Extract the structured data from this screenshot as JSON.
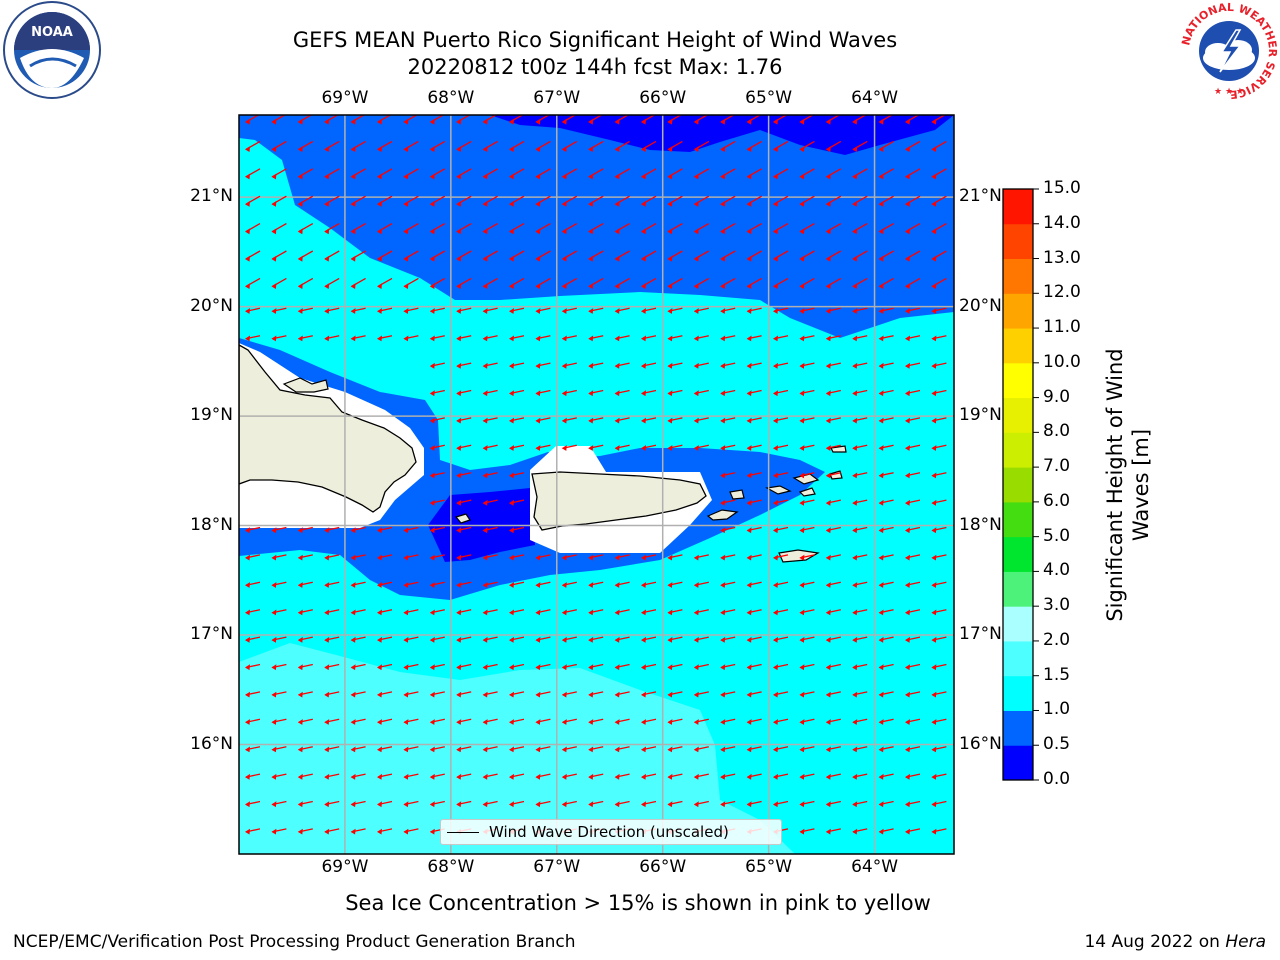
{
  "title": {
    "line1": "GEFS MEAN Puerto Rico Significant Height of Wind Waves",
    "line2": "20220812 t00z 144h fcst   Max: 1.76"
  },
  "logos": {
    "noaa_text": "NOAA",
    "nws_ring_text": "NATIONAL WEATHER SERVICE"
  },
  "axes": {
    "lon_labels": [
      "69°W",
      "68°W",
      "67°W",
      "66°W",
      "65°W",
      "64°W"
    ],
    "lon_values": [
      -69,
      -68,
      -67,
      -66,
      -65,
      -64
    ],
    "lat_labels": [
      "21°N",
      "20°N",
      "19°N",
      "18°N",
      "17°N",
      "16°N"
    ],
    "lat_values": [
      21,
      20,
      19,
      18,
      17,
      16
    ],
    "lon_range": [
      -70.0,
      -63.25
    ],
    "lat_range": [
      15.0,
      21.75
    ]
  },
  "colorbar": {
    "label": "Significant Height of Wind Waves [m]",
    "ticks": [
      "0.0",
      "0.5",
      "1.0",
      "1.5",
      "2.0",
      "3.0",
      "4.0",
      "5.0",
      "6.0",
      "7.0",
      "8.0",
      "9.0",
      "10.0",
      "11.0",
      "12.0",
      "13.0",
      "14.0",
      "15.0"
    ],
    "colors": [
      "#0000ff",
      "#0066ff",
      "#00ffff",
      "#4dffff",
      "#aaffff",
      "#4df27a",
      "#00e62e",
      "#44dd11",
      "#99dd00",
      "#ccee00",
      "#e6f000",
      "#ffff00",
      "#ffd000",
      "#ffa500",
      "#ff7700",
      "#ff4400",
      "#ff1500"
    ]
  },
  "field_colors": {
    "band_0_0_5": "#0000ff",
    "band_0_5_1_0": "#0066ff",
    "band_1_0_1_5": "#00ffff",
    "band_1_5_2_0": "#4dffff",
    "land": "#eeeedd",
    "arrow": "#ff0000"
  },
  "arrow_direction": "toward west-southwest",
  "legend": {
    "label": "Wind Wave Direction (unscaled)"
  },
  "subtitle": "Sea Ice Concentration > 15% is shown in pink to yellow",
  "footer": {
    "left": "NCEP/EMC/Verification Post Processing Product Generation Branch",
    "right_date": "14 Aug 2022 on ",
    "right_host": "Hera"
  }
}
